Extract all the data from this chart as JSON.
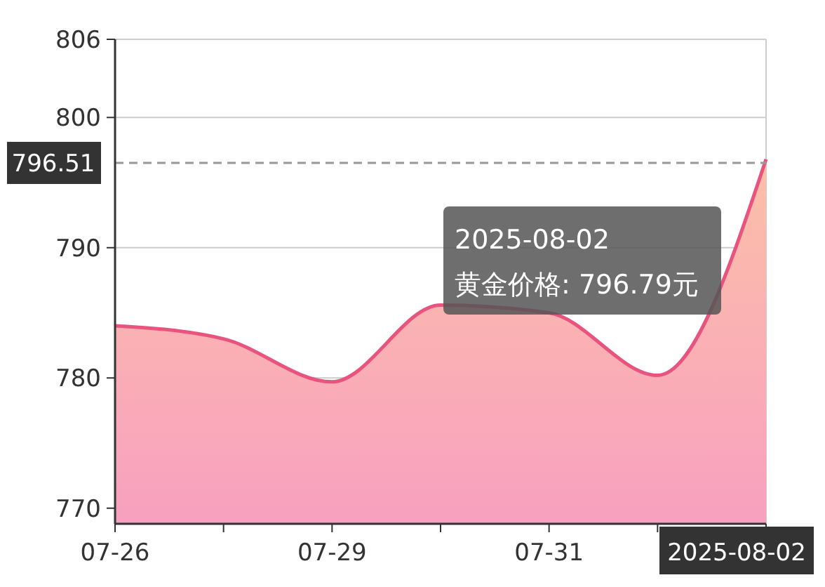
{
  "chart_data": {
    "type": "area",
    "categories": [
      "07-26",
      null,
      "07-29",
      null,
      "07-31",
      null,
      "2025-08-02"
    ],
    "series": [
      {
        "color": "#e8547e",
        "values": [
          784.0,
          783.0,
          779.7,
          785.6,
          785.0,
          780.2,
          796.79
        ]
      }
    ],
    "ylim": [
      768.8,
      806
    ],
    "yticks": [
      770,
      780,
      790,
      800,
      806
    ],
    "grid": "y",
    "marker": "none",
    "ref_lines": [
      {
        "axis": "y",
        "value": 796.51,
        "label": "796.51",
        "line_style": "dashed",
        "color": "#999999"
      }
    ],
    "annotations": [
      "2025-08-02\n黄金价格: 796.79元"
    ]
  }
}
